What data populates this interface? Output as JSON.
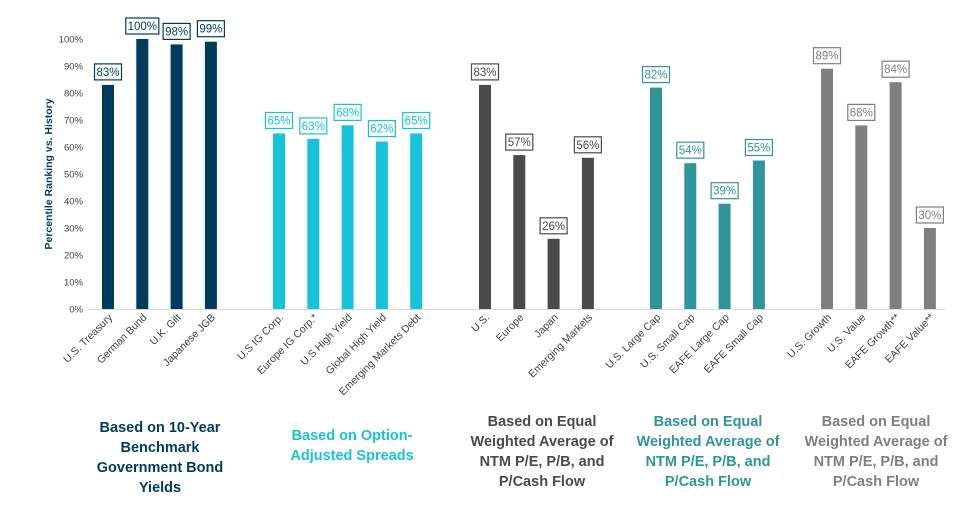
{
  "chart_data": {
    "type": "bar",
    "ylabel": "Percentile Ranking vs. History",
    "ylim": [
      0,
      100
    ],
    "yticks": [
      "0%",
      "10%",
      "20%",
      "30%",
      "40%",
      "50%",
      "60%",
      "70%",
      "80%",
      "90%",
      "100%"
    ],
    "grid": false,
    "groups": [
      {
        "label": "Based on 10-Year Benchmark Government Bond Yields",
        "color": "#003b5c",
        "bars": [
          {
            "category": "U.S. Treasury",
            "value": 83
          },
          {
            "category": "German Bund",
            "value": 100
          },
          {
            "category": "U.K. Gilt",
            "value": 98
          },
          {
            "category": "Japanese JGB",
            "value": 99
          }
        ]
      },
      {
        "label": "Based on Option-Adjusted Spreads",
        "color": "#17c2db",
        "bars": [
          {
            "category": "U.S IG Corp.",
            "value": 65
          },
          {
            "category": "Europe IG Corp.*",
            "value": 63
          },
          {
            "category": "U.S High Yield",
            "value": 68
          },
          {
            "category": "Global High Yield",
            "value": 62
          },
          {
            "category": "Emerging Markets Debt",
            "value": 65
          }
        ]
      },
      {
        "label": "Based on Equal Weighted Average of NTM P/E, P/B, and P/Cash Flow",
        "color": "#4a4a4a",
        "bars": [
          {
            "category": "U.S.",
            "value": 83
          },
          {
            "category": "Europe",
            "value": 57
          },
          {
            "category": "Japan",
            "value": 26
          },
          {
            "category": "Emerging Markets",
            "value": 56
          }
        ]
      },
      {
        "label": "Based on Equal Weighted Average of NTM P/E, P/B, and P/Cash Flow",
        "color": "#2f9598",
        "bars": [
          {
            "category": "U.S. Large Cap",
            "value": 82
          },
          {
            "category": "U.S. Small Cap",
            "value": 54
          },
          {
            "category": "EAFE Large Cap",
            "value": 39
          },
          {
            "category": "EAFE Small Cap",
            "value": 55
          }
        ]
      },
      {
        "label": "Based on Equal Weighted Average of NTM P/E, P/B, and P/Cash Flow",
        "color": "#7f7f7f",
        "bars": [
          {
            "category": "U.S. Growth",
            "value": 89
          },
          {
            "category": "U.S. Value",
            "value": 68
          },
          {
            "category": "EAFE Growth**",
            "value": 84
          },
          {
            "category": "EAFE Value**",
            "value": 30
          }
        ]
      }
    ]
  }
}
